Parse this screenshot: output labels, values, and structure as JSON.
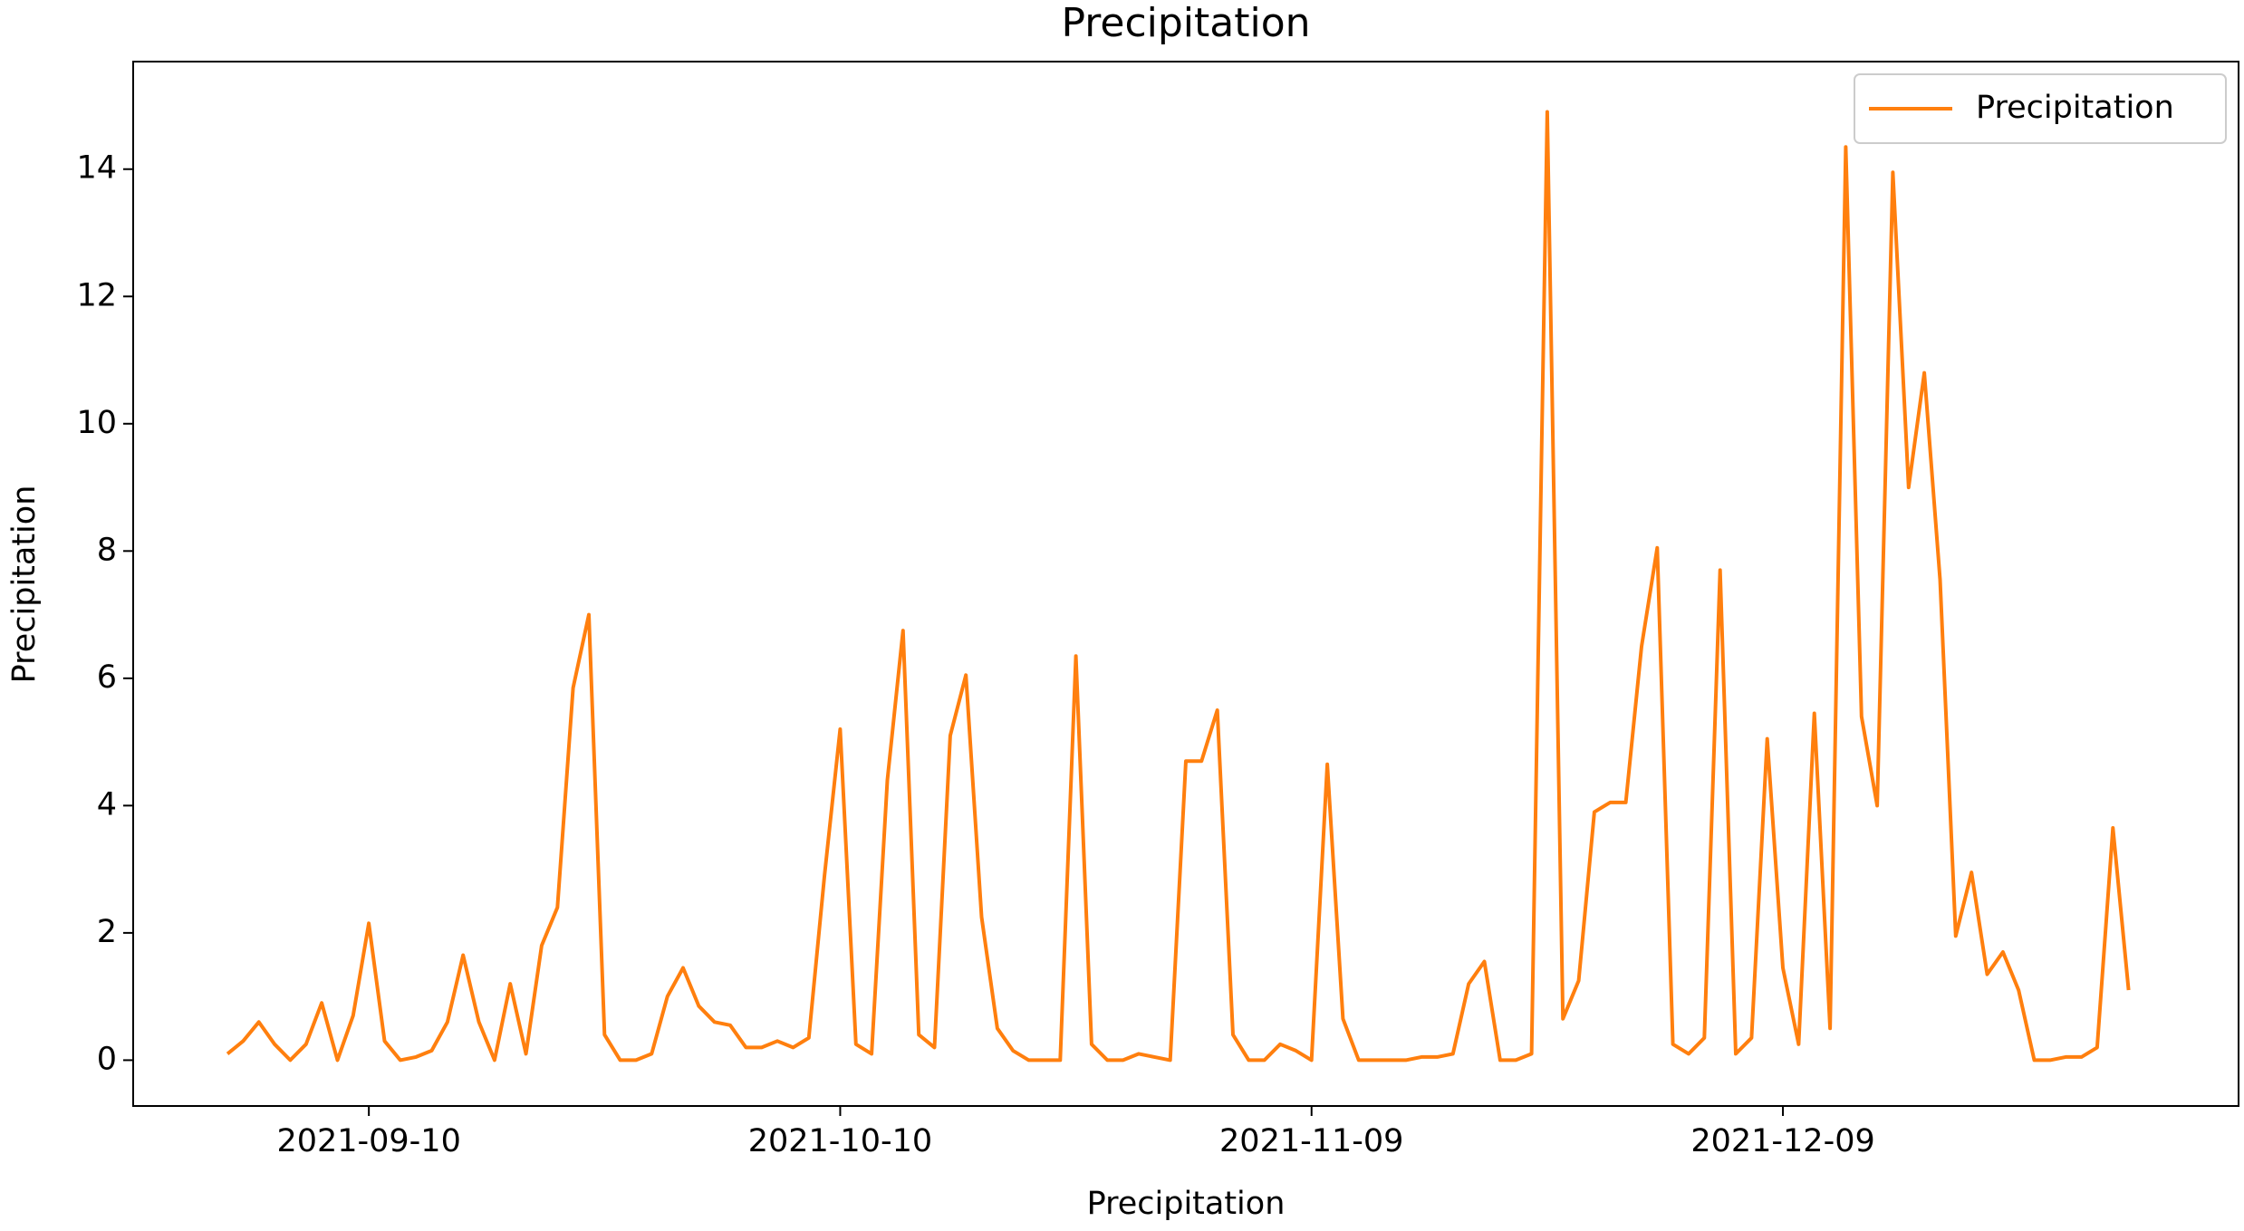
{
  "chart_data": {
    "type": "line",
    "title": "Precipitation",
    "xlabel": "Precipitation",
    "ylabel": "Precipitation",
    "x": [
      "2021-09-01",
      "2021-09-02",
      "2021-09-03",
      "2021-09-04",
      "2021-09-05",
      "2021-09-06",
      "2021-09-07",
      "2021-09-08",
      "2021-09-09",
      "2021-09-10",
      "2021-09-11",
      "2021-09-12",
      "2021-09-13",
      "2021-09-14",
      "2021-09-15",
      "2021-09-16",
      "2021-09-17",
      "2021-09-18",
      "2021-09-19",
      "2021-09-20",
      "2021-09-21",
      "2021-09-22",
      "2021-09-23",
      "2021-09-24",
      "2021-09-25",
      "2021-09-26",
      "2021-09-27",
      "2021-09-28",
      "2021-09-29",
      "2021-09-30",
      "2021-10-01",
      "2021-10-02",
      "2021-10-03",
      "2021-10-04",
      "2021-10-05",
      "2021-10-06",
      "2021-10-07",
      "2021-10-08",
      "2021-10-09",
      "2021-10-10",
      "2021-10-11",
      "2021-10-12",
      "2021-10-13",
      "2021-10-14",
      "2021-10-15",
      "2021-10-16",
      "2021-10-17",
      "2021-10-18",
      "2021-10-19",
      "2021-10-20",
      "2021-10-21",
      "2021-10-22",
      "2021-10-23",
      "2021-10-24",
      "2021-10-25",
      "2021-10-26",
      "2021-10-27",
      "2021-10-28",
      "2021-10-29",
      "2021-10-30",
      "2021-10-31",
      "2021-11-01",
      "2021-11-02",
      "2021-11-03",
      "2021-11-04",
      "2021-11-05",
      "2021-11-06",
      "2021-11-07",
      "2021-11-08",
      "2021-11-09",
      "2021-11-10",
      "2021-11-11",
      "2021-11-12",
      "2021-11-13",
      "2021-11-14",
      "2021-11-15",
      "2021-11-16",
      "2021-11-17",
      "2021-11-18",
      "2021-11-19",
      "2021-11-20",
      "2021-11-21",
      "2021-11-22",
      "2021-11-23",
      "2021-11-24",
      "2021-11-25",
      "2021-11-26",
      "2021-11-27",
      "2021-11-28",
      "2021-11-29",
      "2021-11-30",
      "2021-12-01",
      "2021-12-02",
      "2021-12-03",
      "2021-12-04",
      "2021-12-05",
      "2021-12-06",
      "2021-12-07",
      "2021-12-08",
      "2021-12-09",
      "2021-12-10",
      "2021-12-11",
      "2021-12-12",
      "2021-12-13",
      "2021-12-14",
      "2021-12-15",
      "2021-12-16",
      "2021-12-17",
      "2021-12-18",
      "2021-12-19",
      "2021-12-20",
      "2021-12-21",
      "2021-12-22",
      "2021-12-23",
      "2021-12-24",
      "2021-12-25",
      "2021-12-26",
      "2021-12-27",
      "2021-12-28",
      "2021-12-29",
      "2021-12-30",
      "2021-12-31"
    ],
    "series": [
      {
        "name": "Precipitation",
        "color": "#ff7f0e",
        "values": [
          0.1,
          0.3,
          0.6,
          0.25,
          0,
          0.25,
          0.9,
          0,
          0.7,
          2.15,
          0.3,
          0,
          0.05,
          0.15,
          0.6,
          1.65,
          0.6,
          0,
          1.2,
          0.1,
          1.8,
          2.4,
          5.85,
          7.0,
          0.4,
          0,
          0,
          0.1,
          1.0,
          1.45,
          0.85,
          0.6,
          0.55,
          0.2,
          0.2,
          0.3,
          0.2,
          0.35,
          2.9,
          5.2,
          0.25,
          0.1,
          4.4,
          6.75,
          0.4,
          0.2,
          5.1,
          6.05,
          2.25,
          0.5,
          0.15,
          0,
          0,
          0,
          6.35,
          0.25,
          0,
          0,
          0.1,
          0.05,
          0,
          4.7,
          4.7,
          5.5,
          0.4,
          0,
          0,
          0.25,
          0.15,
          0,
          4.65,
          0.65,
          0,
          0,
          0,
          0,
          0.05,
          0.05,
          0.1,
          1.2,
          1.55,
          0,
          0,
          0.1,
          14.9,
          0.65,
          1.25,
          3.9,
          4.05,
          4.05,
          6.5,
          8.05,
          0.25,
          0.1,
          0.35,
          7.7,
          0.1,
          0.35,
          5.05,
          1.45,
          0.25,
          5.45,
          0.5,
          14.35,
          5.4,
          4.0,
          13.95,
          9.0,
          10.8,
          7.55,
          1.95,
          2.95,
          1.35,
          1.7,
          1.1,
          0,
          0,
          0.05,
          0.05,
          0.2,
          3.65,
          1.1
        ]
      }
    ],
    "xlim": [
      "2021-08-26",
      "2022-01-07"
    ],
    "xticks": [
      "2021-09-10",
      "2021-10-10",
      "2021-11-09",
      "2021-12-09"
    ],
    "ylim": [
      -0.72,
      15.69
    ],
    "yticks": [
      0,
      2,
      4,
      6,
      8,
      10,
      12,
      14
    ],
    "legend": "upper right"
  }
}
